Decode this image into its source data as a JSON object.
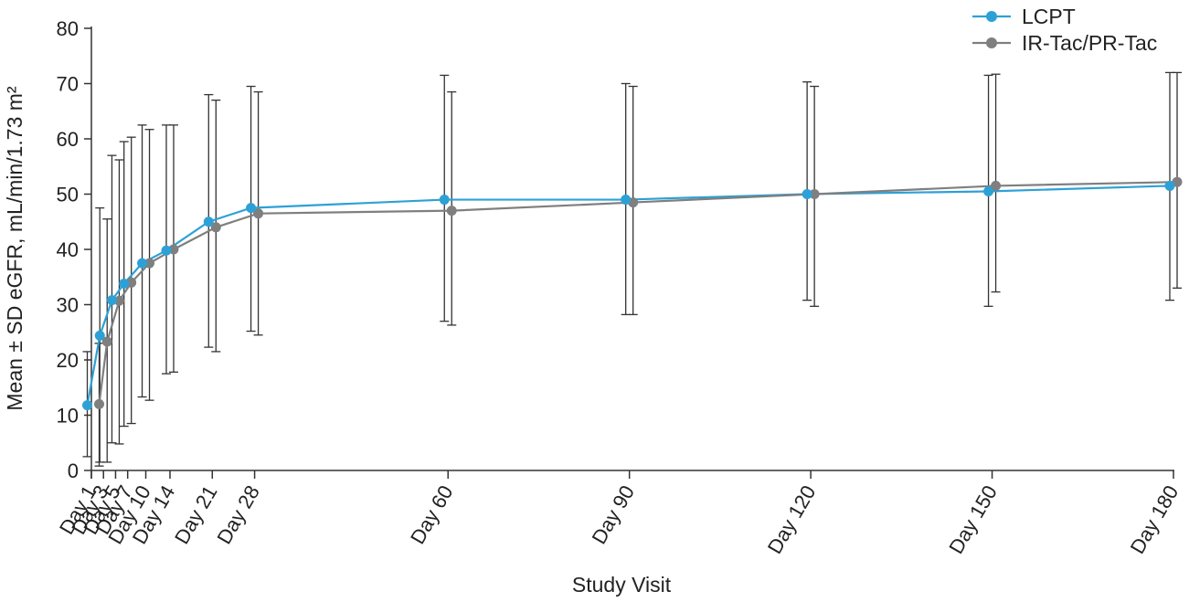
{
  "chart_data": {
    "type": "line",
    "title": "",
    "xlabel": "Study Visit",
    "ylabel": "Mean ± SD eGFR, mL/min/1.73 m²",
    "x": [
      1,
      3,
      5,
      7,
      10,
      14,
      21,
      28,
      60,
      90,
      120,
      150,
      180
    ],
    "categories": [
      "Day 1",
      "Day 3",
      "Day 5",
      "Day 7",
      "Day 10",
      "Day 14",
      "Day 21",
      "Day 28",
      "Day 60",
      "Day 90",
      "Day 120",
      "Day 150",
      "Day 180"
    ],
    "ylim": [
      0,
      80
    ],
    "yticks": [
      0,
      10,
      20,
      30,
      40,
      50,
      60,
      70,
      80
    ],
    "legend_position": "top-right",
    "grid": false,
    "series": [
      {
        "name": "LCPT",
        "color": "#2da1d6",
        "values": [
          11.8,
          24.4,
          30.8,
          33.8,
          37.5,
          39.8,
          45.0,
          47.5,
          49.0,
          49.0,
          50.0,
          50.5,
          51.5
        ],
        "err_upper": [
          21.5,
          47.5,
          57.0,
          59.5,
          62.5,
          62.5,
          68.0,
          69.5,
          71.5,
          70.0,
          70.3,
          71.5,
          72.0
        ],
        "err_lower": [
          2.5,
          1.5,
          5.0,
          8.0,
          13.3,
          17.5,
          22.3,
          25.2,
          27.0,
          28.2,
          30.8,
          29.7,
          30.8
        ]
      },
      {
        "name": "IR-Tac/PR-Tac",
        "color": "#7f7f7f",
        "values": [
          12.0,
          23.3,
          30.7,
          34.0,
          37.5,
          40.0,
          44.0,
          46.5,
          47.0,
          48.5,
          50.0,
          51.5,
          52.2
        ],
        "err_upper": [
          23.0,
          45.5,
          56.2,
          60.3,
          61.7,
          62.5,
          67.0,
          68.5,
          68.5,
          69.5,
          69.5,
          71.7,
          72.0
        ],
        "err_lower": [
          0.8,
          1.5,
          4.8,
          8.5,
          12.7,
          17.8,
          21.5,
          24.5,
          26.3,
          28.2,
          29.7,
          32.3,
          33.0
        ]
      }
    ]
  }
}
